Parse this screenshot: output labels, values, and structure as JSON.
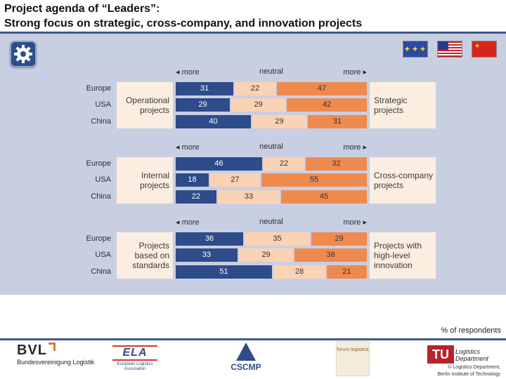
{
  "title": {
    "line1": "Project agenda of “Leaders”:",
    "line2": "Strong focus on strategic, cross-company, and innovation projects"
  },
  "icons": {
    "gear": "gear-icon",
    "flags": [
      "eu-flag-icon",
      "us-flag-icon",
      "china-flag-icon"
    ]
  },
  "colors": {
    "more_left": "#2e4b8a",
    "neutral": "#fbd2b4",
    "more_right": "#ef8a4e",
    "panel": "#c9cfe3",
    "accent": "#3d5a8a"
  },
  "chart_data": {
    "type": "bar",
    "stacked": true,
    "orientation": "horizontal",
    "scale_labels": {
      "left": "more",
      "center": "neutral",
      "right": "more"
    },
    "unit": "% of respondents",
    "groups": [
      {
        "left_label": "Operational projects",
        "right_label": "Strategic projects",
        "rows": [
          {
            "region": "Europe",
            "values": [
              31,
              22,
              47
            ]
          },
          {
            "region": "USA",
            "values": [
              29,
              29,
              42
            ]
          },
          {
            "region": "China",
            "values": [
              40,
              29,
              31
            ]
          }
        ]
      },
      {
        "left_label": "Internal projects",
        "right_label": "Cross-company projects",
        "rows": [
          {
            "region": "Europe",
            "values": [
              46,
              22,
              32
            ]
          },
          {
            "region": "USA",
            "values": [
              18,
              27,
              55
            ]
          },
          {
            "region": "China",
            "values": [
              22,
              33,
              45
            ]
          }
        ]
      },
      {
        "left_label": "Projects based on standards",
        "right_label": "Projects with high-level innovation",
        "rows": [
          {
            "region": "Europe",
            "values": [
              36,
              35,
              29
            ]
          },
          {
            "region": "USA",
            "values": [
              33,
              29,
              38
            ]
          },
          {
            "region": "China",
            "values": [
              51,
              28,
              21
            ]
          }
        ]
      }
    ]
  },
  "footnote": "% of respondents",
  "logos": {
    "bvl_mark": "BVL",
    "bvl_name": "Bundesvereinigung Logistik",
    "ela_mark": "ELA",
    "ela_name": "European Logistics Association",
    "cscmp_mark": "CSCMP",
    "forum_name": "forum logistica",
    "tu_mark": "TU",
    "tu_dept": "Logistics Department",
    "tu_credit1": "© Logistics Department,",
    "tu_credit2": "Berlin Institute of Technology"
  }
}
